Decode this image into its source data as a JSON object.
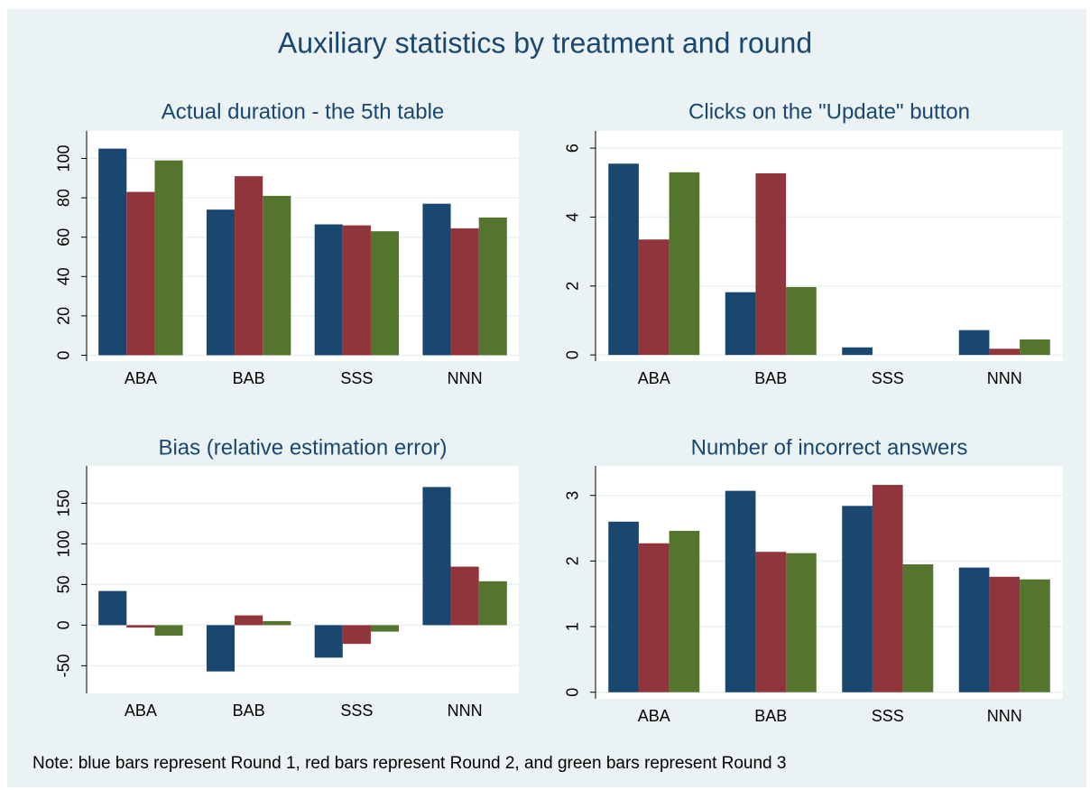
{
  "title": "Auxiliary statistics by treatment and round",
  "note": "Note: blue bars represent Round 1, red bars represent Round 2, and green bars represent Round 3",
  "chart_data": [
    {
      "type": "bar",
      "title": "Actual duration - the 5th table",
      "categories": [
        "ABA",
        "BAB",
        "SSS",
        "NNN"
      ],
      "series": [
        {
          "color": "#1a476f",
          "values": [
            105,
            74,
            66.5,
            77
          ]
        },
        {
          "color": "#90353b",
          "values": [
            83,
            91,
            66,
            64.5
          ]
        },
        {
          "color": "#55752f",
          "values": [
            99,
            81,
            63,
            70
          ]
        }
      ],
      "ylim": [
        -3,
        114
      ],
      "yticks": [
        0,
        20,
        40,
        60,
        80,
        100
      ],
      "grid": true
    },
    {
      "type": "bar",
      "title": "Clicks on the \"Update\" button",
      "categories": [
        "ABA",
        "BAB",
        "SSS",
        "NNN"
      ],
      "series": [
        {
          "color": "#1a476f",
          "values": [
            5.55,
            1.82,
            0.22,
            0.72
          ]
        },
        {
          "color": "#90353b",
          "values": [
            3.35,
            5.27,
            0,
            0.18
          ]
        },
        {
          "color": "#55752f",
          "values": [
            5.3,
            1.97,
            0,
            0.45
          ]
        }
      ],
      "ylim": [
        -0.18,
        6.5
      ],
      "yticks": [
        0,
        2,
        4,
        6
      ],
      "grid": true
    },
    {
      "type": "bar",
      "title": "Bias (relative estimation error)",
      "categories": [
        "ABA",
        "BAB",
        "SSS",
        "NNN"
      ],
      "series": [
        {
          "color": "#1a476f",
          "values": [
            42,
            -57,
            -40,
            170
          ]
        },
        {
          "color": "#90353b",
          "values": [
            -3,
            12,
            -23,
            72
          ]
        },
        {
          "color": "#55752f",
          "values": [
            -13,
            5,
            -8,
            54
          ]
        }
      ],
      "ylim": [
        -84,
        196
      ],
      "yticks": [
        -50,
        0,
        50,
        100,
        150
      ],
      "grid": true
    },
    {
      "type": "bar",
      "title": "Number of incorrect answers",
      "categories": [
        "ABA",
        "BAB",
        "SSS",
        "NNN"
      ],
      "series": [
        {
          "color": "#1a476f",
          "values": [
            2.6,
            3.07,
            2.84,
            1.9
          ]
        },
        {
          "color": "#90353b",
          "values": [
            2.27,
            2.14,
            3.16,
            1.76
          ]
        },
        {
          "color": "#55752f",
          "values": [
            2.46,
            2.12,
            1.95,
            1.72
          ]
        }
      ],
      "ylim": [
        -0.1,
        3.45
      ],
      "yticks": [
        0,
        1,
        2,
        3
      ],
      "grid": true
    }
  ]
}
